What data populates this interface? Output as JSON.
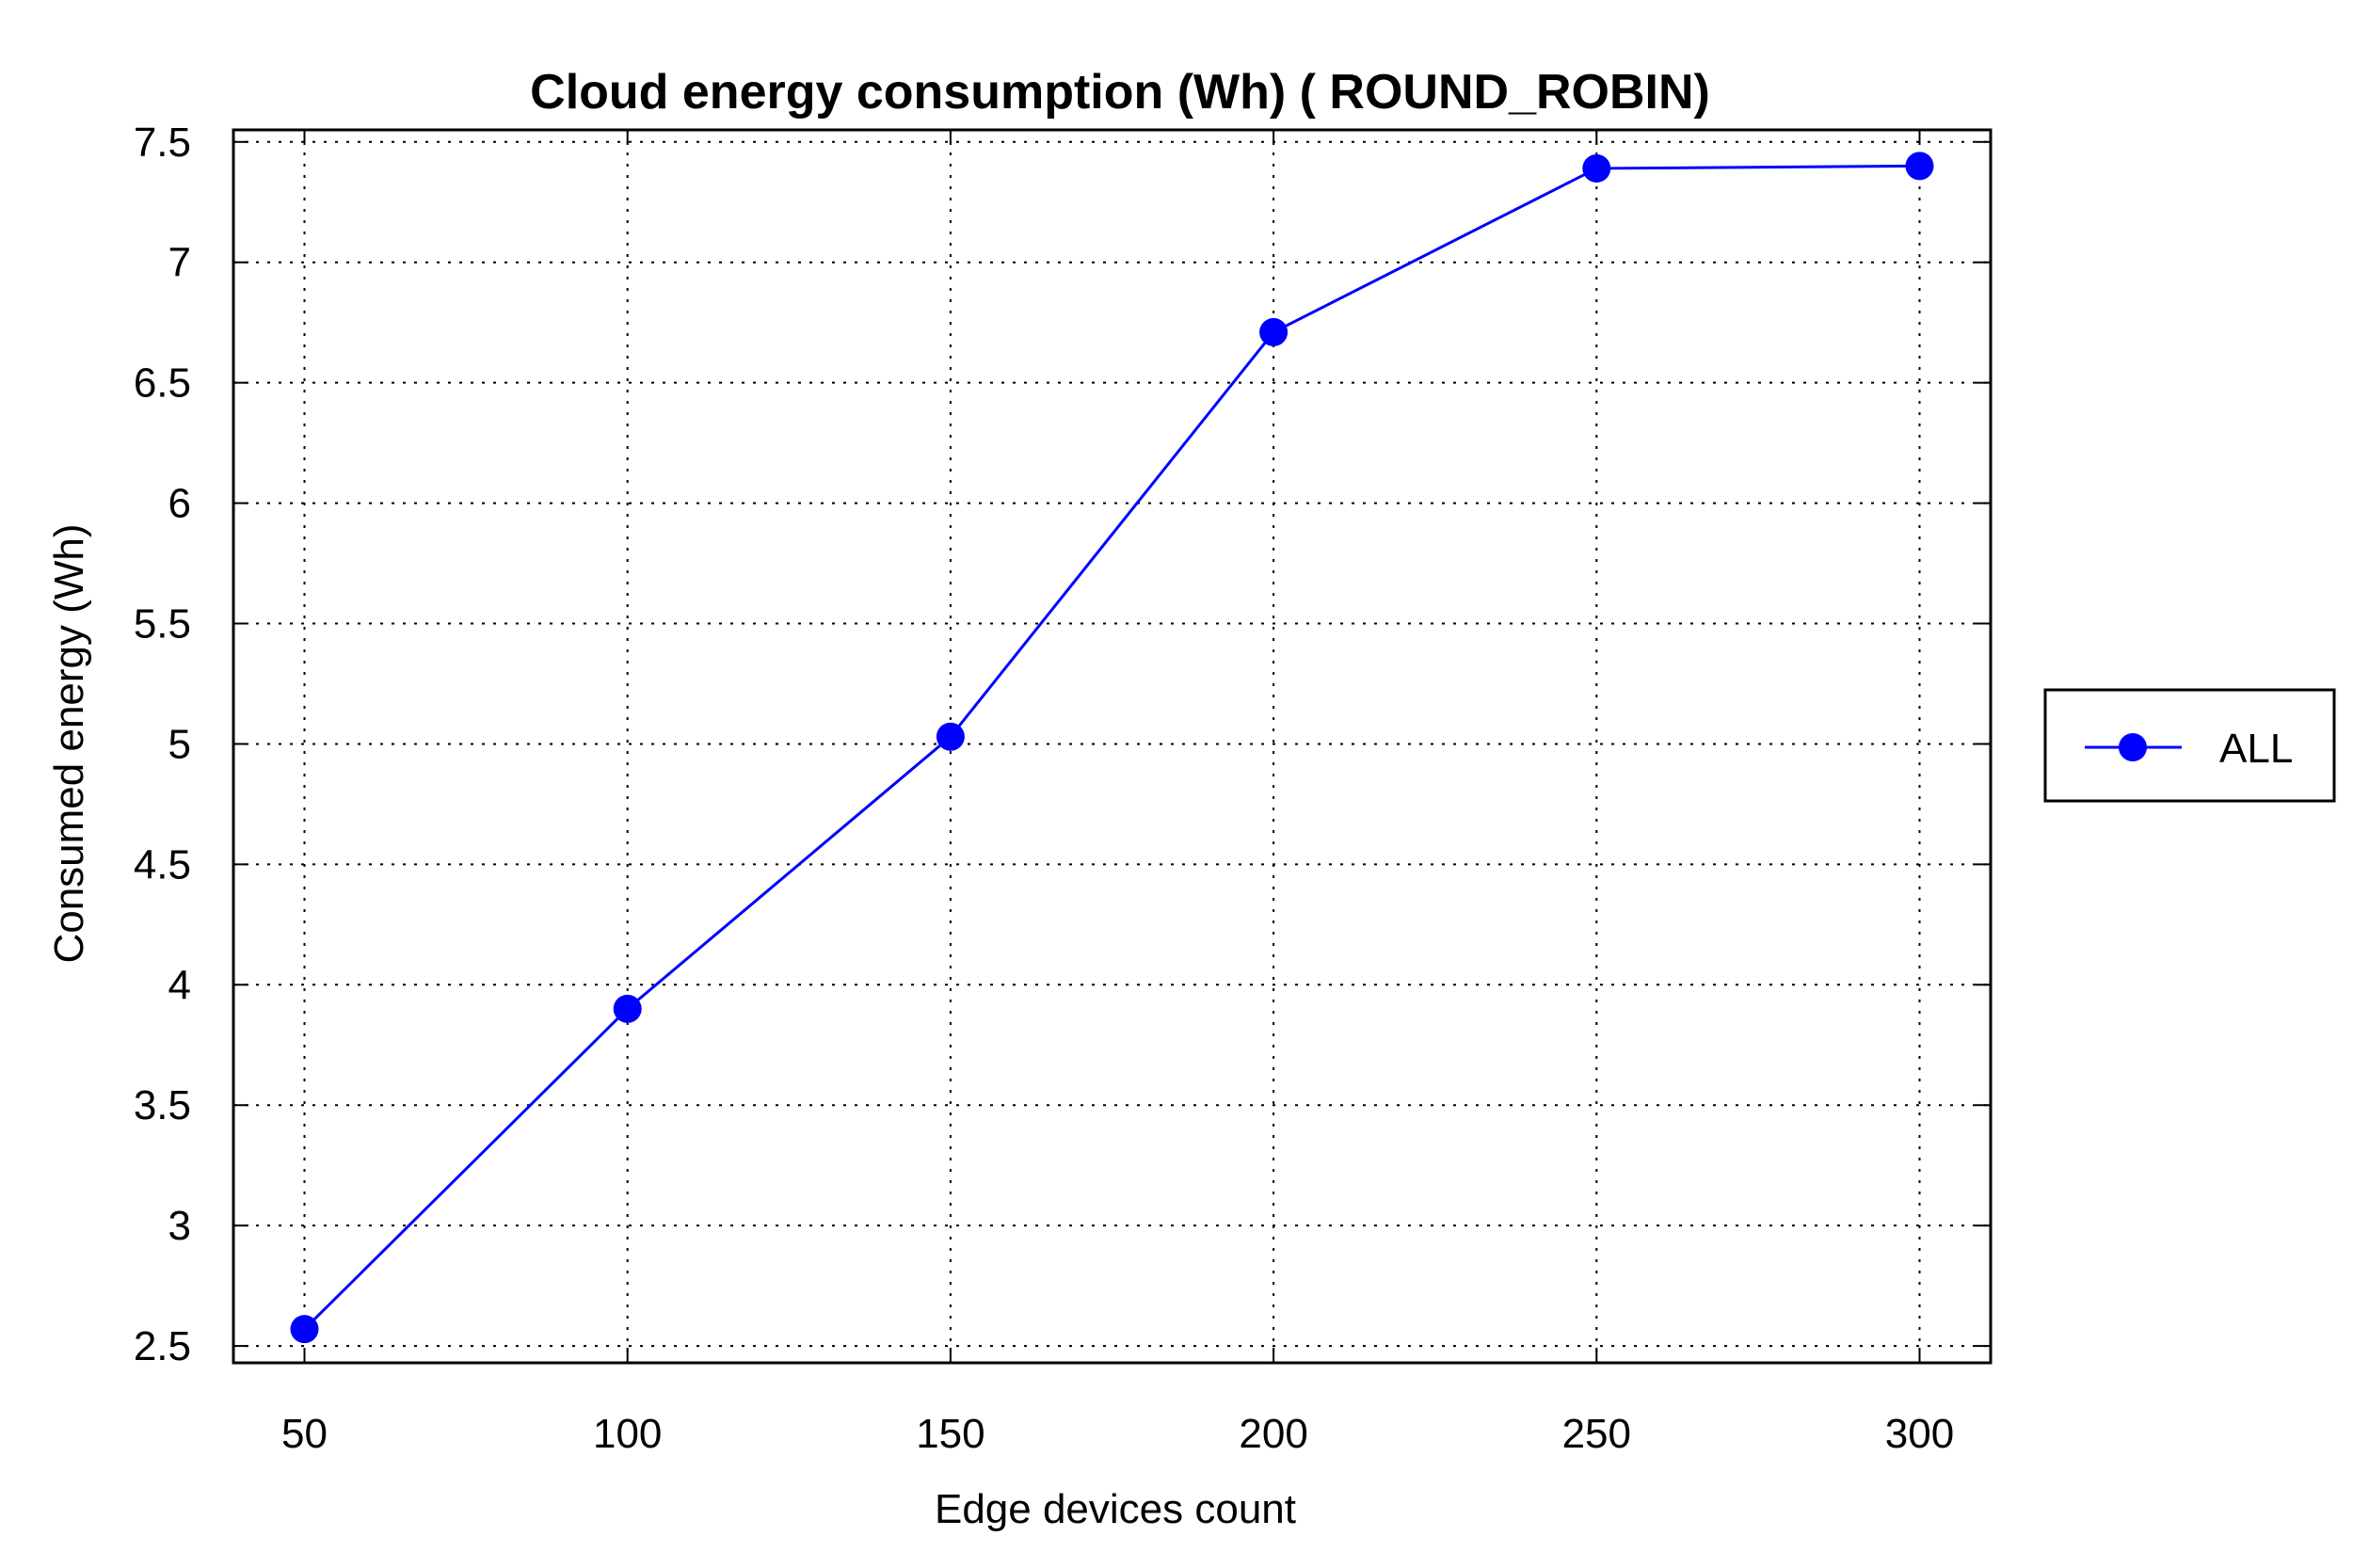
{
  "chart_data": {
    "type": "line",
    "title": "Cloud energy consumption (Wh) ( ROUND_ROBIN)",
    "xlabel": "Edge devices count",
    "ylabel": "Consumed energy (Wh)",
    "x": [
      50,
      100,
      150,
      200,
      250,
      300
    ],
    "x_tick_labels": [
      "50",
      "100",
      "150",
      "200",
      "250",
      "300"
    ],
    "y_ticks": [
      2.5,
      3,
      3.5,
      4,
      4.5,
      5,
      5.5,
      6,
      6.5,
      7,
      7.5
    ],
    "y_tick_labels": [
      "2.5",
      "3",
      "3.5",
      "4",
      "4.5",
      "5",
      "5.5",
      "6",
      "6.5",
      "7",
      "7.5"
    ],
    "xlim": [
      39,
      311
    ],
    "ylim": [
      2.43,
      7.55
    ],
    "grid": true,
    "legend_position": "right",
    "series": [
      {
        "name": "ALL",
        "color": "#0000ff",
        "marker": "circle",
        "values": [
          2.57,
          3.9,
          5.03,
          6.71,
          7.39,
          7.4
        ]
      }
    ]
  }
}
